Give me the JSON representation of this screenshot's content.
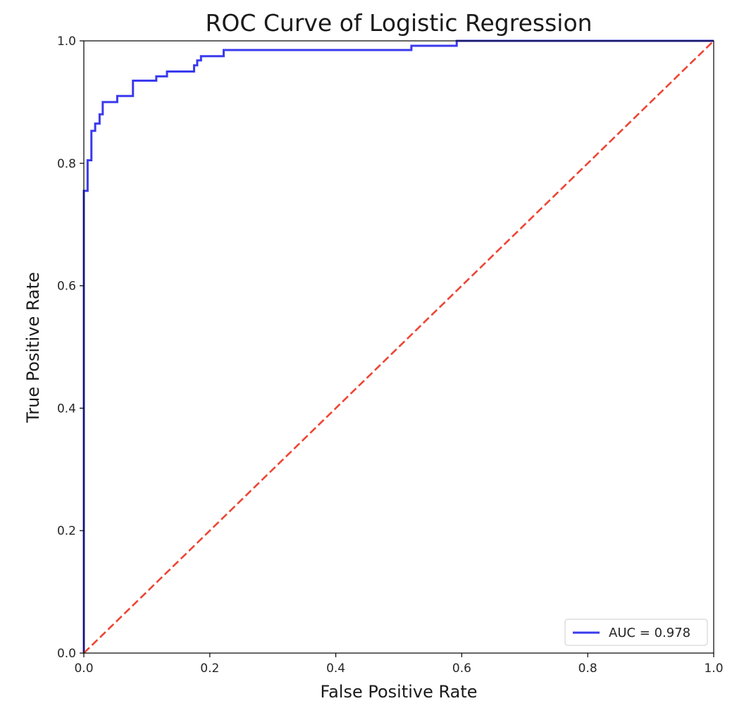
{
  "chart_data": {
    "type": "line",
    "title": "ROC Curve of Logistic Regression",
    "xlabel": "False Positive Rate",
    "ylabel": "True Positive Rate",
    "xlim": [
      0,
      1
    ],
    "ylim": [
      0,
      1
    ],
    "x_ticks": [
      "0.0",
      "0.2",
      "0.4",
      "0.6",
      "0.8",
      "1.0"
    ],
    "y_ticks": [
      "0.0",
      "0.2",
      "0.4",
      "0.6",
      "0.8",
      "1.0"
    ],
    "grid": false,
    "legend_position": "bottom-right",
    "series": [
      {
        "name": "AUC = 0.978",
        "color": "#3a3aee",
        "style": "solid",
        "points": [
          [
            0.0,
            0.0
          ],
          [
            0.0,
            0.755
          ],
          [
            0.006,
            0.755
          ],
          [
            0.006,
            0.805
          ],
          [
            0.012,
            0.805
          ],
          [
            0.012,
            0.853
          ],
          [
            0.018,
            0.853
          ],
          [
            0.018,
            0.865
          ],
          [
            0.025,
            0.865
          ],
          [
            0.025,
            0.88
          ],
          [
            0.03,
            0.88
          ],
          [
            0.03,
            0.9
          ],
          [
            0.053,
            0.9
          ],
          [
            0.053,
            0.91
          ],
          [
            0.078,
            0.91
          ],
          [
            0.078,
            0.935
          ],
          [
            0.115,
            0.935
          ],
          [
            0.115,
            0.942
          ],
          [
            0.132,
            0.942
          ],
          [
            0.132,
            0.95
          ],
          [
            0.175,
            0.95
          ],
          [
            0.175,
            0.96
          ],
          [
            0.18,
            0.96
          ],
          [
            0.18,
            0.968
          ],
          [
            0.186,
            0.968
          ],
          [
            0.186,
            0.975
          ],
          [
            0.222,
            0.975
          ],
          [
            0.222,
            0.985
          ],
          [
            0.52,
            0.985
          ],
          [
            0.52,
            0.992
          ],
          [
            0.592,
            0.992
          ],
          [
            0.592,
            1.0
          ],
          [
            1.0,
            1.0
          ]
        ]
      },
      {
        "name": "",
        "color": "#ee4433",
        "style": "dashed",
        "points": [
          [
            0.0,
            0.0
          ],
          [
            1.0,
            1.0
          ]
        ]
      }
    ]
  }
}
